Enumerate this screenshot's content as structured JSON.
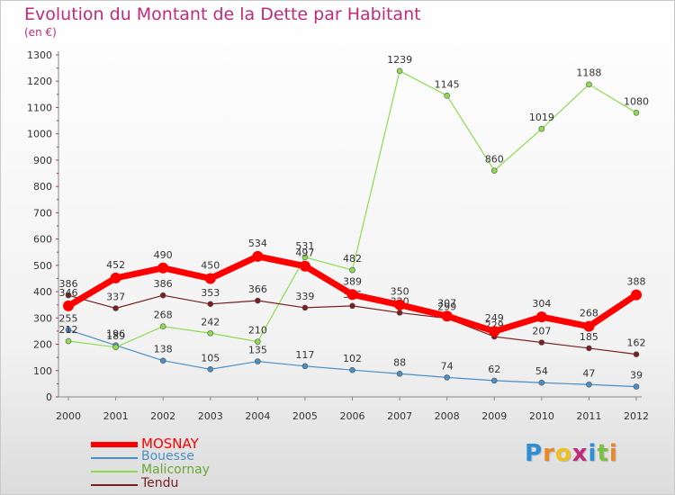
{
  "header": {
    "title": "Evolution du Montant de la Dette par Habitant",
    "subtitle": "(en €)"
  },
  "brand": {
    "letters": [
      "P",
      "r",
      "o",
      "x",
      "i",
      "t",
      "i"
    ],
    "colors": [
      "#2b8ed6",
      "#e8882a",
      "#f0c020",
      "#c02a7a",
      "#2b8ed6",
      "#7bc043",
      "#e8882a"
    ]
  },
  "chart_data": {
    "type": "line",
    "title": "Evolution du Montant de la Dette par Habitant",
    "subtitle": "(en €)",
    "x": [
      "2000",
      "2001",
      "2002",
      "2003",
      "2004",
      "2005",
      "2006",
      "2007",
      "2008",
      "2009",
      "2010",
      "2011",
      "2012"
    ],
    "ylim": [
      0,
      1300
    ],
    "yticks": [
      0,
      100,
      200,
      300,
      400,
      500,
      600,
      700,
      800,
      900,
      1000,
      1100,
      1200,
      1300
    ],
    "grid": false,
    "legend_position": "bottom-left",
    "series": [
      {
        "name": "MOSNAY",
        "color": "#ff0000",
        "emphasis": true,
        "values": [
          346,
          452,
          490,
          450,
          534,
          497,
          389,
          350,
          307,
          249,
          304,
          268,
          388
        ],
        "labels": [
          "346",
          "452",
          "490",
          "450",
          "534",
          "497",
          "389",
          "350",
          "307",
          "249",
          "304",
          "268",
          "388"
        ]
      },
      {
        "name": "Bouesse",
        "color": "#4a8ec6",
        "values": [
          255,
          196,
          138,
          105,
          135,
          117,
          102,
          88,
          74,
          62,
          54,
          47,
          39
        ],
        "labels": [
          "255",
          "196",
          "138",
          "105",
          "135",
          "117",
          "102",
          "88",
          "74",
          "62",
          "54",
          "47",
          "39"
        ]
      },
      {
        "name": "Malicornay",
        "color": "#8cdc50",
        "values": [
          212,
          189,
          268,
          242,
          210,
          531,
          482,
          1239,
          1145,
          860,
          1019,
          1188,
          1080
        ],
        "labels": [
          "212",
          "189",
          "268",
          "242",
          "210",
          "531",
          "482",
          "1239",
          "1145",
          "860",
          "1019",
          "1188",
          "1080"
        ]
      },
      {
        "name": "Tendu",
        "color": "#7a2020",
        "values": [
          386,
          337,
          386,
          353,
          366,
          339,
          346,
          320,
          299,
          229,
          207,
          185,
          162
        ],
        "labels": [
          "386",
          "337",
          "386",
          "353",
          "366",
          "339",
          "346",
          "320",
          "299",
          "229",
          "207",
          "185",
          "162"
        ]
      }
    ]
  }
}
